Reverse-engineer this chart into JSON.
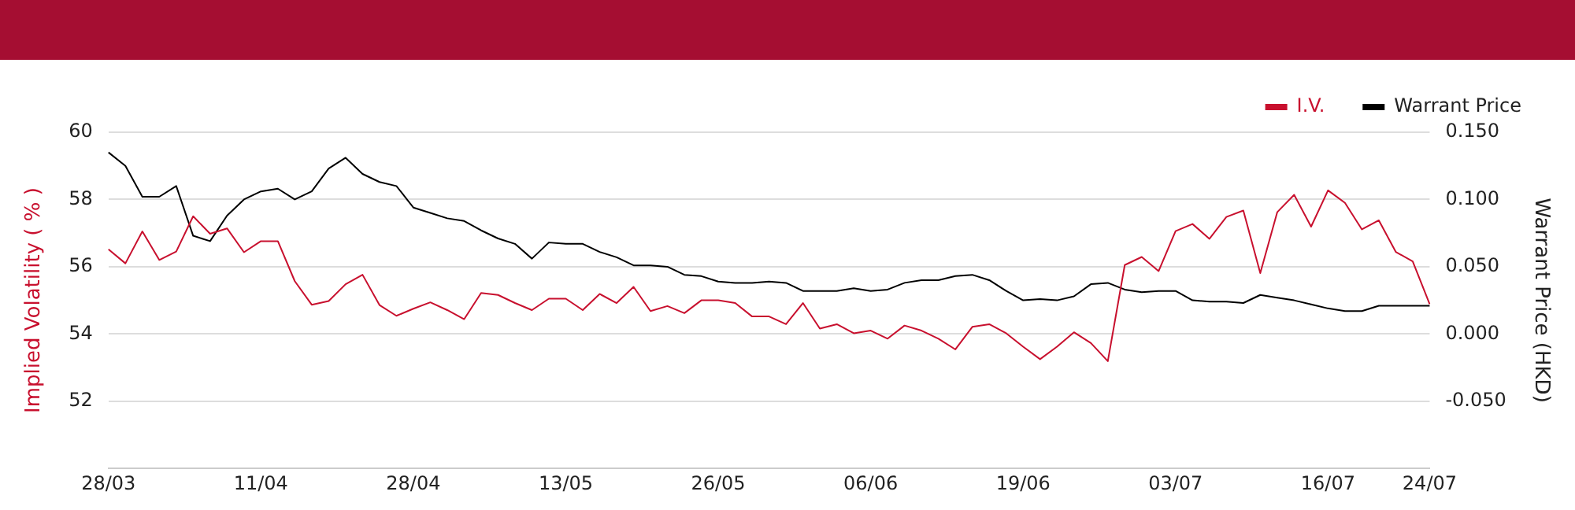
{
  "chart_data": {
    "type": "line",
    "ylabel": "Implied Volatility ( % )",
    "y2label": "Warrant Price (HKD)",
    "categories": [
      "28/03",
      null,
      null,
      null,
      null,
      null,
      null,
      null,
      null,
      "11/04",
      null,
      null,
      null,
      null,
      null,
      null,
      null,
      null,
      "28/04",
      null,
      null,
      null,
      null,
      null,
      null,
      null,
      null,
      "13/05",
      null,
      null,
      null,
      null,
      null,
      null,
      null,
      null,
      "26/05",
      null,
      null,
      null,
      null,
      null,
      null,
      null,
      null,
      "06/06",
      null,
      null,
      null,
      null,
      null,
      null,
      null,
      null,
      "19/06",
      null,
      null,
      null,
      null,
      null,
      null,
      null,
      null,
      "03/07",
      null,
      null,
      null,
      null,
      null,
      null,
      null,
      null,
      "16/07",
      null,
      null,
      null,
      null,
      null,
      "24/07"
    ],
    "series": [
      {
        "name": "I.V.",
        "color": "#c8102e",
        "values": [
          56.52,
          56.1,
          57.05,
          56.2,
          56.45,
          57.5,
          56.98,
          57.14,
          56.43,
          56.76,
          56.76,
          55.57,
          54.87,
          54.98,
          55.48,
          55.76,
          54.86,
          54.54,
          54.75,
          54.94,
          54.71,
          54.44,
          55.22,
          55.16,
          54.92,
          54.71,
          55.05,
          55.05,
          54.71,
          55.19,
          54.92,
          55.4,
          54.68,
          54.83,
          54.62,
          55.0,
          55.0,
          54.92,
          54.52,
          54.52,
          54.29,
          54.92,
          54.16,
          54.29,
          54.02,
          54.1,
          53.86,
          54.25,
          54.1,
          53.86,
          53.54,
          54.21,
          54.29,
          54.02,
          53.62,
          53.25,
          53.62,
          54.05,
          53.73,
          53.19,
          56.05,
          56.29,
          55.87,
          57.06,
          57.27,
          56.83,
          57.48,
          57.67,
          55.81,
          57.62,
          58.14,
          57.19,
          58.27,
          57.9,
          57.11,
          57.38,
          56.44,
          56.16,
          54.89
        ]
      },
      {
        "name": "Warrant Price",
        "color": "#000000",
        "axis": "y2",
        "values": [
          0.135,
          0.125,
          0.102,
          0.102,
          0.11,
          0.073,
          0.069,
          0.088,
          0.1,
          0.106,
          0.108,
          0.1,
          0.106,
          0.123,
          0.131,
          0.119,
          0.113,
          0.11,
          0.094,
          0.09,
          0.086,
          0.084,
          0.077,
          0.071,
          0.067,
          0.056,
          0.068,
          0.067,
          0.067,
          0.061,
          0.057,
          0.051,
          0.051,
          0.05,
          0.044,
          0.043,
          0.039,
          0.038,
          0.038,
          0.039,
          0.038,
          0.032,
          0.032,
          0.032,
          0.034,
          0.032,
          0.033,
          0.038,
          0.04,
          0.04,
          0.043,
          0.044,
          0.04,
          0.032,
          0.025,
          0.026,
          0.025,
          0.028,
          0.037,
          0.038,
          0.033,
          0.031,
          0.032,
          0.032,
          0.025,
          0.024,
          0.024,
          0.023,
          0.029,
          0.027,
          0.025,
          0.022,
          0.019,
          0.017,
          0.017,
          0.021,
          0.021,
          0.021,
          0.021
        ]
      }
    ],
    "ylim": [
      50,
      60
    ],
    "yticks": [
      52,
      54,
      56,
      58,
      60
    ],
    "y2lim": [
      -0.1,
      0.15
    ],
    "y2ticks": [
      {
        "value": -0.05,
        "label": "-0.050"
      },
      {
        "value": 0,
        "label": "0.000"
      },
      {
        "value": 0.05,
        "label": "0.050"
      },
      {
        "value": 0.1,
        "label": "0.100"
      },
      {
        "value": 0.15,
        "label": "0.150"
      }
    ],
    "grid": "y",
    "legend": "top right",
    "marker": "none"
  }
}
